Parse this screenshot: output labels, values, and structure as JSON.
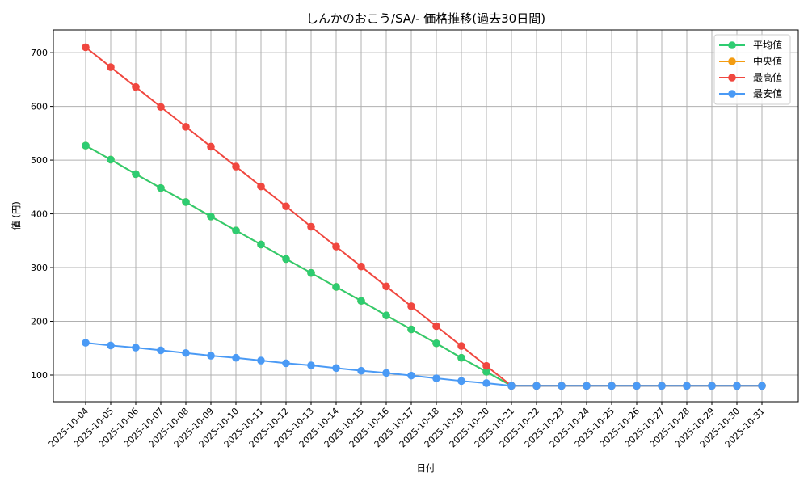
{
  "chart_data": {
    "type": "line",
    "title": "しんかのおこう/SA/- 価格推移(過去30日間)",
    "xlabel": "日付",
    "ylabel": "値 (円)",
    "ylim": [
      50,
      742
    ],
    "yticks": [
      100,
      200,
      300,
      400,
      500,
      600,
      700
    ],
    "grid": true,
    "legend_position": "upper right",
    "x": [
      "2025-10-04",
      "2025-10-05",
      "2025-10-06",
      "2025-10-07",
      "2025-10-08",
      "2025-10-09",
      "2025-10-10",
      "2025-10-11",
      "2025-10-12",
      "2025-10-13",
      "2025-10-14",
      "2025-10-15",
      "2025-10-16",
      "2025-10-17",
      "2025-10-18",
      "2025-10-19",
      "2025-10-20",
      "2025-10-21",
      "2025-10-22",
      "2025-10-23",
      "2025-10-24",
      "2025-10-25",
      "2025-10-26",
      "2025-10-27",
      "2025-10-28",
      "2025-10-29",
      "2025-10-30",
      "2025-10-31"
    ],
    "series": [
      {
        "name": "平均値",
        "color": "#2ecc71",
        "values": [
          527,
          501,
          474,
          448,
          422,
          395,
          369,
          343,
          316,
          290,
          264,
          238,
          211,
          185,
          159,
          132,
          106,
          80,
          80,
          80,
          80,
          80,
          80,
          80,
          80,
          80,
          80,
          80
        ]
      },
      {
        "name": "中央値",
        "color": "#f39c12",
        "values": [
          527,
          501,
          474,
          448,
          422,
          395,
          369,
          343,
          316,
          290,
          264,
          238,
          211,
          185,
          159,
          132,
          106,
          80,
          80,
          80,
          80,
          80,
          80,
          80,
          80,
          80,
          80,
          80
        ]
      },
      {
        "name": "最高値",
        "color": "#f0473f",
        "values": [
          710,
          673,
          636,
          599,
          562,
          525,
          488,
          451,
          414,
          376,
          339,
          302,
          265,
          228,
          191,
          154,
          117,
          80,
          80,
          80,
          80,
          80,
          80,
          80,
          80,
          80,
          80,
          80
        ]
      },
      {
        "name": "最安値",
        "color": "#4a9af5",
        "values": [
          160,
          155,
          151,
          146,
          141,
          136,
          132,
          127,
          122,
          118,
          113,
          108,
          104,
          99,
          94,
          89,
          85,
          80,
          80,
          80,
          80,
          80,
          80,
          80,
          80,
          80,
          80,
          80
        ]
      }
    ]
  }
}
